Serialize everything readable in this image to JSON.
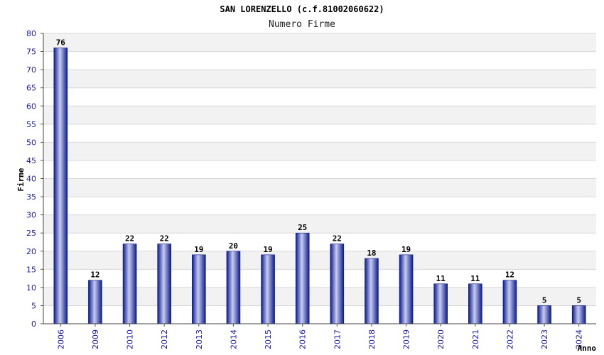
{
  "chart_data": {
    "type": "bar",
    "title": "SAN LORENZELLO (c.f.81002060622)",
    "subtitle": "Numero Firme",
    "xlabel": "Anno",
    "ylabel": "Firme",
    "categories": [
      "2006",
      "2009",
      "2010",
      "2012",
      "2013",
      "2014",
      "2015",
      "2016",
      "2017",
      "2018",
      "2019",
      "2020",
      "2021",
      "2022",
      "2023",
      "2024"
    ],
    "values": [
      76,
      12,
      22,
      22,
      19,
      20,
      19,
      25,
      22,
      18,
      19,
      11,
      11,
      12,
      5,
      5
    ],
    "ylim": [
      0,
      80
    ],
    "ytick_step": 5,
    "grid": true,
    "legend": "none",
    "colors": {
      "bar_dark": "#0a1a8c",
      "bar_light": "#c8ccf0",
      "band_alt": "#f2f2f2",
      "grid": "#d8d8d8",
      "tick_text": "#1a1aa6"
    }
  }
}
